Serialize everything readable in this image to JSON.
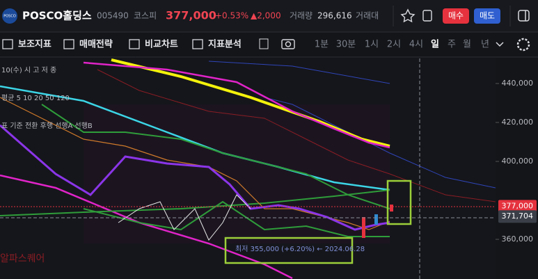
{
  "header": {
    "logo": "POSCO",
    "name": "POSCO홀딩스",
    "code": "005490",
    "market": "코스피",
    "price": "377,000",
    "change_pct": "+0.53%",
    "change": "▲2,000",
    "volume_label": "거래량",
    "volume": "296,616",
    "amount_label": "거래대",
    "buy": "매수",
    "sell": "매도"
  },
  "toolbar": {
    "tools": [
      "보조지표",
      "매매전략",
      "비교차트",
      "지표분석"
    ],
    "periods": [
      "1분",
      "30분",
      "1시",
      "2시",
      "4시",
      "일",
      "주",
      "월",
      "년"
    ],
    "active_period": "일"
  },
  "chart": {
    "legend": [
      "10(수) 시 고 저 종",
      "평균 5 10 20 50 120",
      "표 기준 전환 후행 선행A 선행B"
    ],
    "watermark": "알파스퀘어",
    "annotation": "최저 355,000 (+6.20%) ← 2024.06.28",
    "ylim": [
      339643,
      452857
    ],
    "yticks": [
      {
        "value": 360000,
        "label": "360,000"
      },
      {
        "value": 400000,
        "label": "400,000"
      },
      {
        "value": 420000,
        "label": "420,000"
      },
      {
        "value": 440000,
        "label": "440,000"
      }
    ],
    "price_tags": [
      {
        "value": 377000,
        "label": "377,000",
        "color": "#e5323e"
      },
      {
        "value": 371704,
        "label": "371,704",
        "color": "#3a3e47"
      }
    ]
  }
}
